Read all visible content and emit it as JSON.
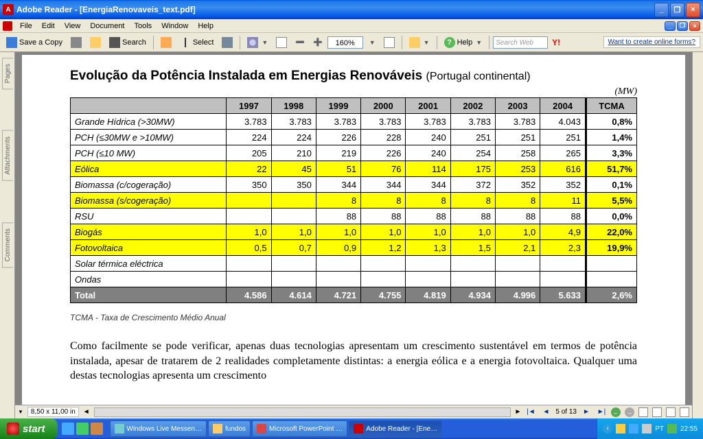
{
  "window": {
    "appName": "Adobe Reader",
    "docName": "[EnergiaRenovaveis_text.pdf]"
  },
  "menu": {
    "items": [
      "File",
      "Edit",
      "View",
      "Document",
      "Tools",
      "Window",
      "Help"
    ]
  },
  "toolbar": {
    "saveCopy": "Save a Copy",
    "search": "Search",
    "select": "Select",
    "zoom": "160%",
    "help": "Help",
    "searchPlaceholder": "Search Web",
    "promo": "Want to create online forms?",
    "yahoo": "Y!"
  },
  "sidetabs": {
    "pages": "Pages",
    "attachments": "Attachments",
    "comments": "Comments"
  },
  "doc": {
    "titleBold": "Evolução da Potência Instalada em Energias Renováveis",
    "titleLight": "(Portugal continental)",
    "unit": "(MW)",
    "years": [
      "1997",
      "1998",
      "1999",
      "2000",
      "2001",
      "2002",
      "2003",
      "2004"
    ],
    "tcmaHead": "TCMA",
    "rows": [
      {
        "label": "Grande Hídrica (>30MW)",
        "vals": [
          "3.783",
          "3.783",
          "3.783",
          "3.783",
          "3.783",
          "3.783",
          "3.783",
          "4.043"
        ],
        "tcma": "0,8%",
        "hl": false
      },
      {
        "label": "PCH (≤30MW e >10MW)",
        "vals": [
          "224",
          "224",
          "226",
          "228",
          "240",
          "251",
          "251",
          "251"
        ],
        "tcma": "1,4%",
        "hl": false
      },
      {
        "label": "PCH (≤10 MW)",
        "vals": [
          "205",
          "210",
          "219",
          "226",
          "240",
          "254",
          "258",
          "265"
        ],
        "tcma": "3,3%",
        "hl": false
      },
      {
        "label": "Eólica",
        "vals": [
          "22",
          "45",
          "51",
          "76",
          "114",
          "175",
          "253",
          "616"
        ],
        "tcma": "51,7%",
        "hl": true
      },
      {
        "label": "Biomassa (c/cogeração)",
        "vals": [
          "350",
          "350",
          "344",
          "344",
          "344",
          "372",
          "352",
          "352"
        ],
        "tcma": "0,1%",
        "hl": false
      },
      {
        "label": "Biomassa (s/cogeração)",
        "vals": [
          "",
          "",
          "8",
          "8",
          "8",
          "8",
          "8",
          "11"
        ],
        "tcma": "5,5%",
        "hl": true
      },
      {
        "label": "RSU",
        "vals": [
          "",
          "",
          "88",
          "88",
          "88",
          "88",
          "88",
          "88"
        ],
        "tcma": "0,0%",
        "hl": false
      },
      {
        "label": "Biogás",
        "vals": [
          "1,0",
          "1,0",
          "1,0",
          "1,0",
          "1,0",
          "1,0",
          "1,0",
          "4,9"
        ],
        "tcma": "22,0%",
        "hl": true
      },
      {
        "label": "Fotovoltaica",
        "vals": [
          "0,5",
          "0,7",
          "0,9",
          "1,2",
          "1,3",
          "1,5",
          "2,1",
          "2,3"
        ],
        "tcma": "19,9%",
        "hl": true
      },
      {
        "label": "Solar térmica eléctrica",
        "vals": [
          "",
          "",
          "",
          "",
          "",
          "",
          "",
          ""
        ],
        "tcma": "",
        "hl": false
      },
      {
        "label": "Ondas",
        "vals": [
          "",
          "",
          "",
          "",
          "",
          "",
          "",
          ""
        ],
        "tcma": "",
        "hl": false
      }
    ],
    "total": {
      "label": "Total",
      "vals": [
        "4.586",
        "4.614",
        "4.721",
        "4.755",
        "4.819",
        "4.934",
        "4.996",
        "5.633"
      ],
      "tcma": "2,6%"
    },
    "footnote": "TCMA - Taxa de Crescimento Médio Anual",
    "paragraph": "Como facilmente se pode verificar, apenas duas tecnologias apresentam um crescimento sustentável em termos de potência instalada, apesar de tratarem de 2 realidades completamente distintas: a energia eólica e a energia fotovoltaica. Qualquer uma destas tecnologias apresenta um crescimento"
  },
  "bottombar": {
    "dim": "8,50 x 11,00 in",
    "page": "5 of 13"
  },
  "taskbar": {
    "start": "start",
    "tasks": [
      {
        "label": "Windows Live Messen…",
        "color": "#7cc"
      },
      {
        "label": "fundos",
        "color": "#fc6"
      },
      {
        "label": "Microsoft PowerPoint …",
        "color": "#d44"
      },
      {
        "label": "Adobe Reader - [Ene…",
        "color": "#c00",
        "active": true
      }
    ],
    "tray": {
      "lang": "PT",
      "time": "22:55"
    }
  },
  "colors": {
    "highlight": "#ffff00",
    "totalRow": "#808080",
    "headerGray": "#c0c0c0"
  }
}
